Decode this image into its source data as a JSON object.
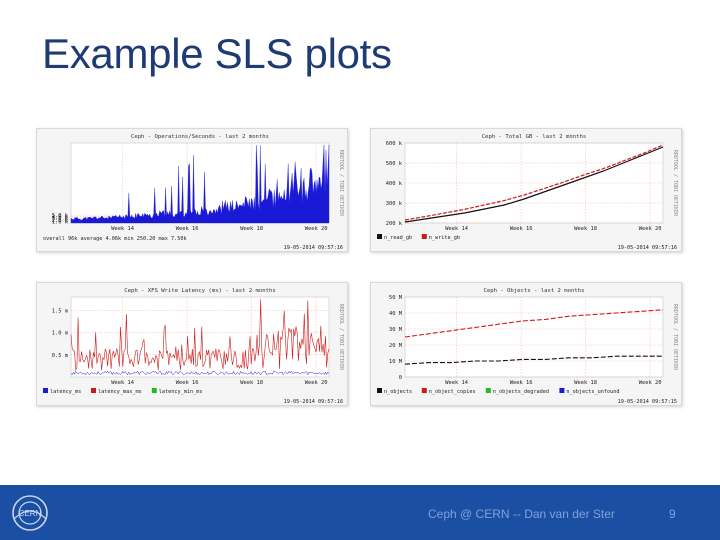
{
  "slide": {
    "title": "Example SLS plots",
    "footer_text": "Ceph @ CERN -- Dan van der Ster",
    "page_number": "9"
  },
  "colors": {
    "title": "#1f3b73",
    "footer_bg": "#1b4fa3",
    "footer_text": "#7fa2d8",
    "series_blue": "#1a1ad6",
    "series_red": "#d01a1a",
    "series_black": "#111111",
    "series_green": "#22bb22"
  },
  "chart_data": [
    {
      "type": "area",
      "title": "Ceph - Operations/Seconds - last 2 months",
      "side_label": "RRDTOOL / TOBI OETIKER",
      "ylim": [
        0,
        50000
      ],
      "y_ticks": [
        "5.0 k",
        "4.0 k",
        "3.0 k",
        "2.0 k",
        "1.0 k"
      ],
      "y_tick_values": [
        5000,
        4000,
        3000,
        2000,
        1000
      ],
      "x_ticks": [
        "Week 14",
        "Week 16",
        "Week 18",
        "Week 20"
      ],
      "series": [
        {
          "name": "",
          "color": "#1a1ad6"
        }
      ],
      "profile": [
        300,
        350,
        400,
        500,
        600,
        700,
        900,
        1100,
        1300,
        1600,
        2000,
        2400
      ],
      "footer_stats": "overall 96k   average 4.06k   min 250.20   max 7.50k",
      "timestamp": "19-05-2014 09:57:16"
    },
    {
      "type": "line",
      "title": "Ceph - Total GB - last 2 months",
      "side_label": "RRDTOOL / TOBI OETIKER",
      "ylim": [
        200000,
        600000
      ],
      "y_ticks": [
        "600 k",
        "500 k",
        "400 k",
        "300 k",
        "200 k"
      ],
      "y_tick_values": [
        600000,
        500000,
        400000,
        300000,
        200000
      ],
      "x_ticks": [
        "Week 14",
        "Week 16",
        "Week 18",
        "Week 20"
      ],
      "series": [
        {
          "name": "n_read_gb",
          "color": "#111111",
          "values": [
            205000,
            220000,
            235000,
            250000,
            270000,
            290000,
            320000,
            355000,
            390000,
            425000,
            460000,
            500000,
            540000,
            580000
          ]
        },
        {
          "name": "n_write_gb",
          "color": "#d01a1a",
          "values": [
            215000,
            232000,
            250000,
            268000,
            290000,
            312000,
            340000,
            372000,
            405000,
            440000,
            472000,
            510000,
            548000,
            590000
          ]
        }
      ],
      "timestamp": "19-05-2014 09:57:16"
    },
    {
      "type": "line",
      "title": "Ceph - XFS Write Latency (ms) - last 2 months",
      "side_label": "RRDTOOL / TOBI OETIKER",
      "ylim": [
        0,
        1.8
      ],
      "y_ticks": [
        "1.5 m",
        "1.0 m",
        "0.5 m"
      ],
      "y_tick_values": [
        1.5,
        1.0,
        0.5
      ],
      "x_ticks": [
        "Week 14",
        "Week 16",
        "Week 18",
        "Week 20"
      ],
      "series": [
        {
          "name": "latency_ms",
          "color": "#1a1ad6"
        },
        {
          "name": "latency_max_ms",
          "color": "#d01a1a"
        },
        {
          "name": "latency_min_ms",
          "color": "#22bb22"
        }
      ],
      "timestamp": "19-05-2014 09:57:16"
    },
    {
      "type": "line",
      "title": "Ceph - Objects - last 2 months",
      "side_label": "RRDTOOL / TOBI OETIKER",
      "ylim": [
        0,
        50
      ],
      "y_ticks": [
        "50 M",
        "40 M",
        "30 M",
        "20 M",
        "10 M",
        "0"
      ],
      "y_tick_values": [
        50,
        40,
        30,
        20,
        10,
        0
      ],
      "x_ticks": [
        "Week 14",
        "Week 16",
        "Week 18",
        "Week 20"
      ],
      "series": [
        {
          "name": "n_objects",
          "color": "#111111",
          "values": [
            8,
            9,
            9,
            10,
            10,
            11,
            11,
            12,
            12,
            13,
            13,
            13
          ]
        },
        {
          "name": "n_object_copies",
          "color": "#d01a1a",
          "values": [
            25,
            27,
            29,
            31,
            33,
            35,
            36,
            38,
            39,
            40,
            41,
            42
          ]
        },
        {
          "name": "n_objects_degraded",
          "color": "#22bb22",
          "values": []
        },
        {
          "name": "n_objects_unfound",
          "color": "#1a1ad6",
          "values": []
        }
      ],
      "timestamp": "19-05-2014 09:57:15"
    }
  ]
}
